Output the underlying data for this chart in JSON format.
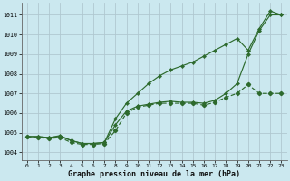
{
  "bg_color": "#cbe8ef",
  "grid_color": "#b0c8d0",
  "line_color": "#2d6a2d",
  "xlabel": "Graphe pression niveau de la mer (hPa)",
  "ylim": [
    1003.6,
    1011.6
  ],
  "xlim": [
    -0.5,
    23.5
  ],
  "yticks": [
    1004,
    1005,
    1006,
    1007,
    1008,
    1009,
    1010,
    1011
  ],
  "xticks": [
    0,
    1,
    2,
    3,
    4,
    5,
    6,
    7,
    8,
    9,
    10,
    11,
    12,
    13,
    14,
    15,
    16,
    17,
    18,
    19,
    20,
    21,
    22,
    23
  ],
  "series_high": [
    1004.8,
    1004.8,
    1004.75,
    1004.85,
    1004.6,
    1004.45,
    1004.45,
    1004.5,
    1005.7,
    1006.5,
    1007.0,
    1007.5,
    1007.9,
    1008.2,
    1008.4,
    1008.6,
    1008.9,
    1009.2,
    1009.5,
    1009.8,
    1009.2,
    1010.3,
    1011.2,
    1011.0
  ],
  "series_mid": [
    1004.8,
    1004.8,
    1004.75,
    1004.8,
    1004.6,
    1004.45,
    1004.45,
    1004.5,
    1005.4,
    1006.1,
    1006.35,
    1006.45,
    1006.55,
    1006.6,
    1006.55,
    1006.55,
    1006.5,
    1006.65,
    1007.0,
    1007.5,
    1009.0,
    1010.2,
    1011.0,
    1011.0
  ],
  "series_low": [
    1004.8,
    1004.75,
    1004.7,
    1004.75,
    1004.5,
    1004.4,
    1004.4,
    1004.45,
    1005.1,
    1006.0,
    1006.3,
    1006.4,
    1006.5,
    1006.5,
    1006.5,
    1006.5,
    1006.4,
    1006.55,
    1006.8,
    1007.0,
    1007.45,
    1007.0,
    1007.0,
    1007.0
  ]
}
